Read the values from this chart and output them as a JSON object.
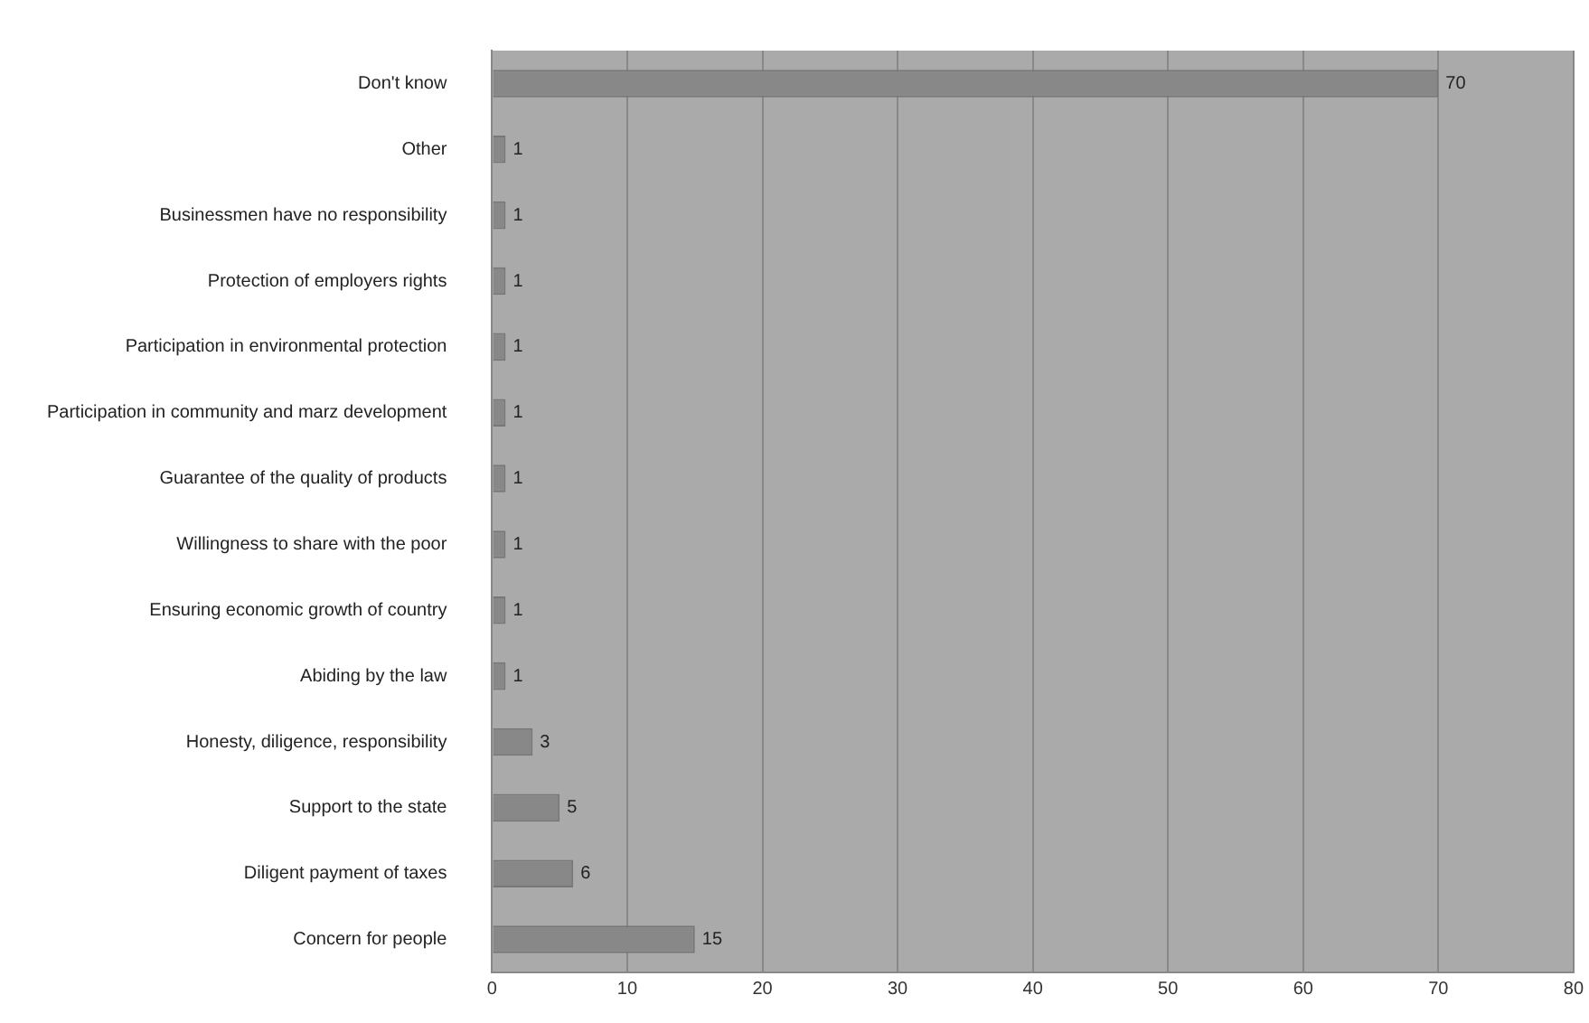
{
  "chart_data": {
    "type": "bar",
    "orientation": "horizontal",
    "categories": [
      "Don't know",
      "Other",
      "Businessmen have no responsibility",
      "Protection of employers rights",
      "Participation in environmental protection",
      "Participation in community and marz development",
      "Guarantee of the quality of products",
      "Willingness to share with the poor",
      "Ensuring economic growth of country",
      "Abiding by the law",
      "Honesty, diligence, responsibility",
      "Support to the state",
      "Diligent payment of taxes",
      "Concern for people"
    ],
    "values": [
      70,
      1,
      1,
      1,
      1,
      1,
      1,
      1,
      1,
      1,
      3,
      5,
      6,
      15
    ],
    "color": "#888888",
    "xlim": [
      0,
      80
    ],
    "xticks": [
      0,
      10,
      20,
      30,
      40,
      50,
      60,
      70,
      80
    ],
    "grid": "x",
    "data_labels": true,
    "legend": false
  }
}
